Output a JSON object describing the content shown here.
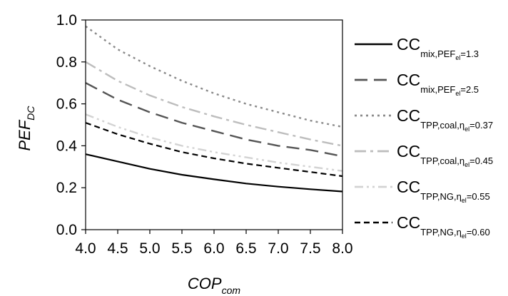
{
  "chart_data": {
    "type": "line",
    "xlabel": {
      "main": "COP",
      "sub": "com"
    },
    "ylabel": {
      "main": "PEF",
      "sub": "DC"
    },
    "xlim": [
      4.0,
      8.0
    ],
    "ylim": [
      0.0,
      1.0
    ],
    "x_ticks": [
      "4.0",
      "4.5",
      "5.0",
      "5.5",
      "6.0",
      "6.5",
      "7.0",
      "7.5",
      "8.0"
    ],
    "y_ticks": [
      "0.0",
      "0.2",
      "0.4",
      "0.6",
      "0.8",
      "1.0"
    ],
    "grid": false,
    "legend_position": "right",
    "x": [
      4.0,
      4.5,
      5.0,
      5.5,
      6.0,
      6.5,
      7.0,
      7.5,
      8.0
    ],
    "series": [
      {
        "base": "CC",
        "sub_text": "mix,PEF",
        "sub_sub": "el",
        "sub_tail": "=1.3",
        "color": "#000000",
        "dash": "solid",
        "width": 2.2,
        "values": [
          0.36,
          0.325,
          0.29,
          0.262,
          0.24,
          0.22,
          0.205,
          0.193,
          0.182
        ]
      },
      {
        "base": "CC",
        "sub_text": "mix,PEF",
        "sub_sub": "el",
        "sub_tail": "=2.5",
        "color": "#555555",
        "dash": "long-dash",
        "width": 2.4,
        "values": [
          0.7,
          0.62,
          0.56,
          0.51,
          0.47,
          0.43,
          0.4,
          0.38,
          0.35
        ]
      },
      {
        "base": "CC",
        "sub_text": "TPP,coal,η",
        "sub_sub": "el",
        "sub_tail": "=0.37",
        "color": "#8a8a8a",
        "dash": "dot",
        "width": 2.4,
        "values": [
          0.97,
          0.86,
          0.78,
          0.71,
          0.65,
          0.6,
          0.56,
          0.52,
          0.49
        ]
      },
      {
        "base": "CC",
        "sub_text": "TPP,coal,η",
        "sub_sub": "el",
        "sub_tail": "=0.45",
        "color": "#bdbdbd",
        "dash": "dash-dot",
        "width": 2.4,
        "values": [
          0.8,
          0.71,
          0.64,
          0.585,
          0.54,
          0.5,
          0.465,
          0.43,
          0.4
        ]
      },
      {
        "base": "CC",
        "sub_text": "TPP,NG,η",
        "sub_sub": "el",
        "sub_tail": "=0.55",
        "color": "#d3d3d3",
        "dash": "dash-dot-dot",
        "width": 2.4,
        "values": [
          0.55,
          0.49,
          0.44,
          0.4,
          0.37,
          0.345,
          0.32,
          0.3,
          0.28
        ]
      },
      {
        "base": "CC",
        "sub_text": "TPP,NG,η",
        "sub_sub": "el",
        "sub_tail": "=0.60",
        "color": "#000000",
        "dash": "short-dash",
        "width": 2.2,
        "values": [
          0.51,
          0.455,
          0.41,
          0.37,
          0.34,
          0.315,
          0.295,
          0.275,
          0.255
        ]
      }
    ]
  }
}
